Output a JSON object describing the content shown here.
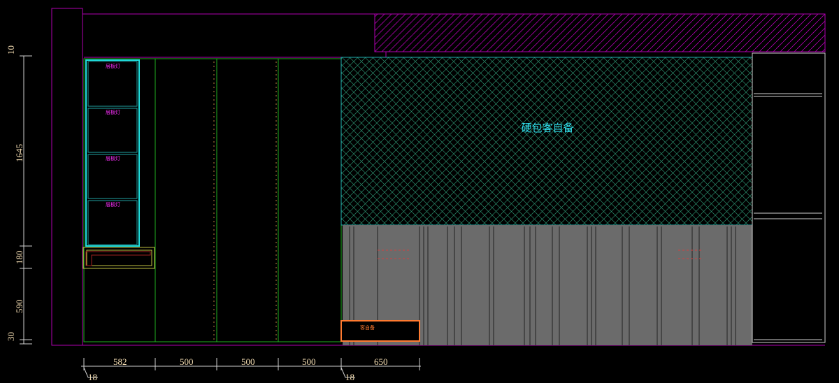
{
  "colors": {
    "wall": "#b000b0",
    "cabinet": "#20b020",
    "shelf": "#20c8c8",
    "accent": "#ff7a30",
    "panel": "#6b6b6b",
    "dim": "#f5deb3"
  },
  "labels": {
    "shelf_lights": [
      "层板灯",
      "层板灯",
      "层板灯",
      "层板灯"
    ],
    "soft_pack": "硬包客自备",
    "cabinet_note": "客自备"
  },
  "dimensions": {
    "vertical": [
      "10",
      "1645",
      "180",
      "590",
      "30"
    ],
    "horizontal": [
      "582",
      "500",
      "500",
      "500",
      "650"
    ],
    "offsets": [
      "18",
      "18"
    ]
  }
}
